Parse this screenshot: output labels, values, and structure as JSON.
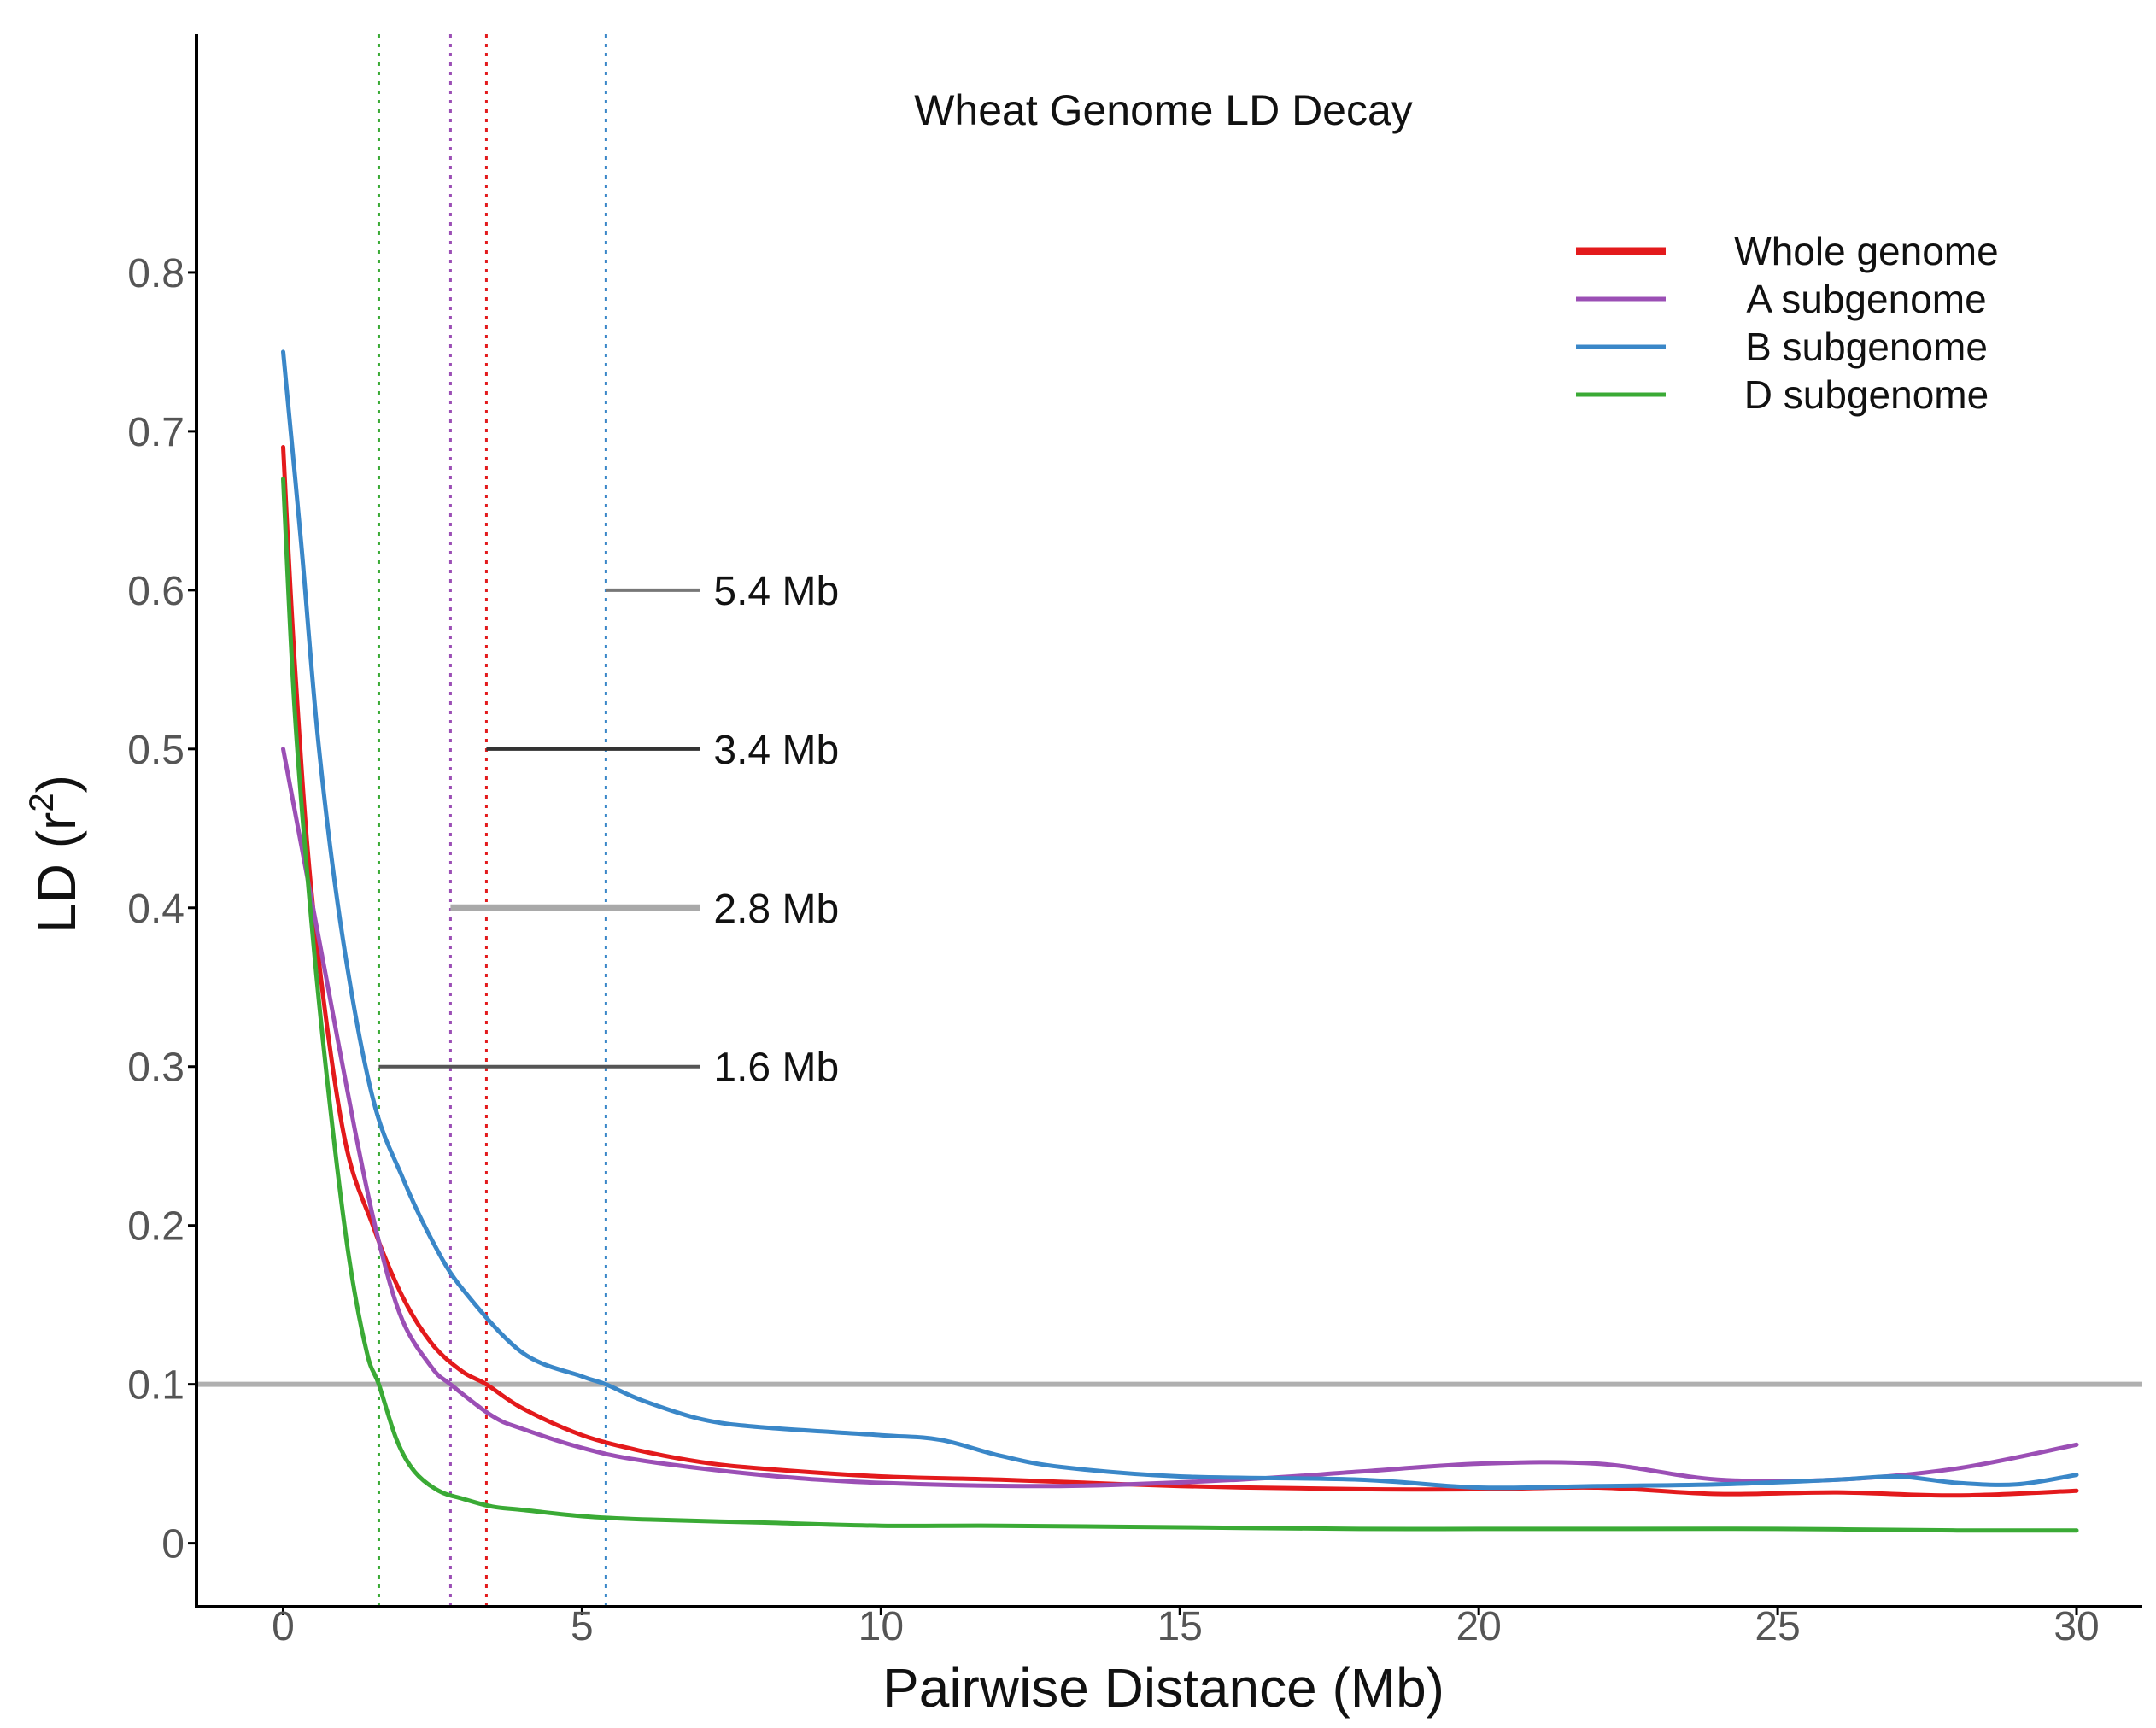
{
  "chart_data": {
    "type": "line",
    "title": "Wheat Genome LD Decay",
    "xlabel": "Pairwise Distance (Mb)",
    "ylabel_main": "LD (r",
    "ylabel_sup": "2",
    "ylabel_end": ")",
    "xlim": [
      -1.45,
      31.1
    ],
    "ylim": [
      -0.04,
      0.95
    ],
    "x_ticks": [
      0,
      5,
      10,
      15,
      20,
      25,
      30
    ],
    "x_tick_labels": [
      "0",
      "5",
      "10",
      "15",
      "20",
      "25",
      "30"
    ],
    "y_ticks": [
      0,
      0.1,
      0.2,
      0.3,
      0.4,
      0.5,
      0.6,
      0.7,
      0.8
    ],
    "y_tick_labels": [
      "0",
      "0.1",
      "0.2",
      "0.3",
      "0.4",
      "0.5",
      "0.6",
      "0.7",
      "0.8"
    ],
    "threshold": 0.1,
    "legend_position": "top-right",
    "series": [
      {
        "name": "Whole genome",
        "color": "#e31a1c",
        "x": [
          0,
          0.2,
          0.5,
          1,
          1.5,
          2,
          2.5,
          3,
          3.4,
          4,
          5,
          6,
          7,
          8,
          10,
          12,
          15,
          18,
          20,
          22,
          24,
          26,
          28,
          30
        ],
        "values": [
          0.69,
          0.55,
          0.4,
          0.26,
          0.2,
          0.155,
          0.125,
          0.108,
          0.1,
          0.085,
          0.068,
          0.058,
          0.051,
          0.047,
          0.042,
          0.04,
          0.036,
          0.034,
          0.034,
          0.035,
          0.031,
          0.032,
          0.03,
          0.033
        ]
      },
      {
        "name": "A subgenome",
        "color": "#9b4fb5",
        "x": [
          0,
          0.3,
          0.7,
          1.2,
          1.6,
          2,
          2.5,
          2.8,
          3.5,
          4,
          5,
          6,
          8,
          10,
          13,
          16,
          18,
          20,
          22,
          24,
          26,
          28,
          30
        ],
        "values": [
          0.5,
          0.44,
          0.36,
          0.26,
          0.19,
          0.14,
          0.11,
          0.1,
          0.08,
          0.072,
          0.06,
          0.052,
          0.043,
          0.038,
          0.036,
          0.04,
          0.045,
          0.05,
          0.05,
          0.04,
          0.04,
          0.047,
          0.062
        ]
      },
      {
        "name": "B subgenome",
        "color": "#3a87c8",
        "x": [
          0,
          0.3,
          0.6,
          1,
          1.5,
          2,
          2.5,
          3,
          4,
          5,
          5.4,
          6,
          7,
          8,
          10,
          11,
          12,
          13,
          15,
          18,
          20,
          22,
          24,
          26,
          27,
          28,
          29,
          30
        ],
        "values": [
          0.75,
          0.63,
          0.5,
          0.38,
          0.28,
          0.23,
          0.19,
          0.16,
          0.12,
          0.105,
          0.1,
          0.09,
          0.078,
          0.073,
          0.068,
          0.065,
          0.055,
          0.048,
          0.042,
          0.04,
          0.035,
          0.036,
          0.037,
          0.04,
          0.042,
          0.038,
          0.037,
          0.043
        ]
      },
      {
        "name": "D subgenome",
        "color": "#3aaa35",
        "x": [
          0,
          0.2,
          0.5,
          0.8,
          1.1,
          1.4,
          1.6,
          1.9,
          2.2,
          2.6,
          3,
          3.5,
          4,
          5,
          6,
          8,
          10,
          12,
          15,
          18,
          20,
          22,
          25,
          28,
          30
        ],
        "values": [
          0.67,
          0.52,
          0.38,
          0.27,
          0.18,
          0.12,
          0.1,
          0.065,
          0.045,
          0.033,
          0.028,
          0.023,
          0.021,
          0.017,
          0.015,
          0.013,
          0.011,
          0.011,
          0.01,
          0.009,
          0.009,
          0.009,
          0.009,
          0.008,
          0.008
        ]
      }
    ],
    "decay_markers": [
      {
        "x": 5.4,
        "y": 0.6,
        "label": "5.4  Mb",
        "color": "#3a87c8",
        "line_color": "#777777"
      },
      {
        "x": 3.4,
        "y": 0.5,
        "label": "3.4  Mb",
        "color": "#e31a1c",
        "line_color": "#333333"
      },
      {
        "x": 2.8,
        "y": 0.4,
        "label": "2.8  Mb",
        "color": "#9b4fb5",
        "line_color": "#a9a9a9"
      },
      {
        "x": 1.6,
        "y": 0.3,
        "label": "1.6  Mb",
        "color": "#3aaa35",
        "line_color": "#555555"
      }
    ]
  }
}
